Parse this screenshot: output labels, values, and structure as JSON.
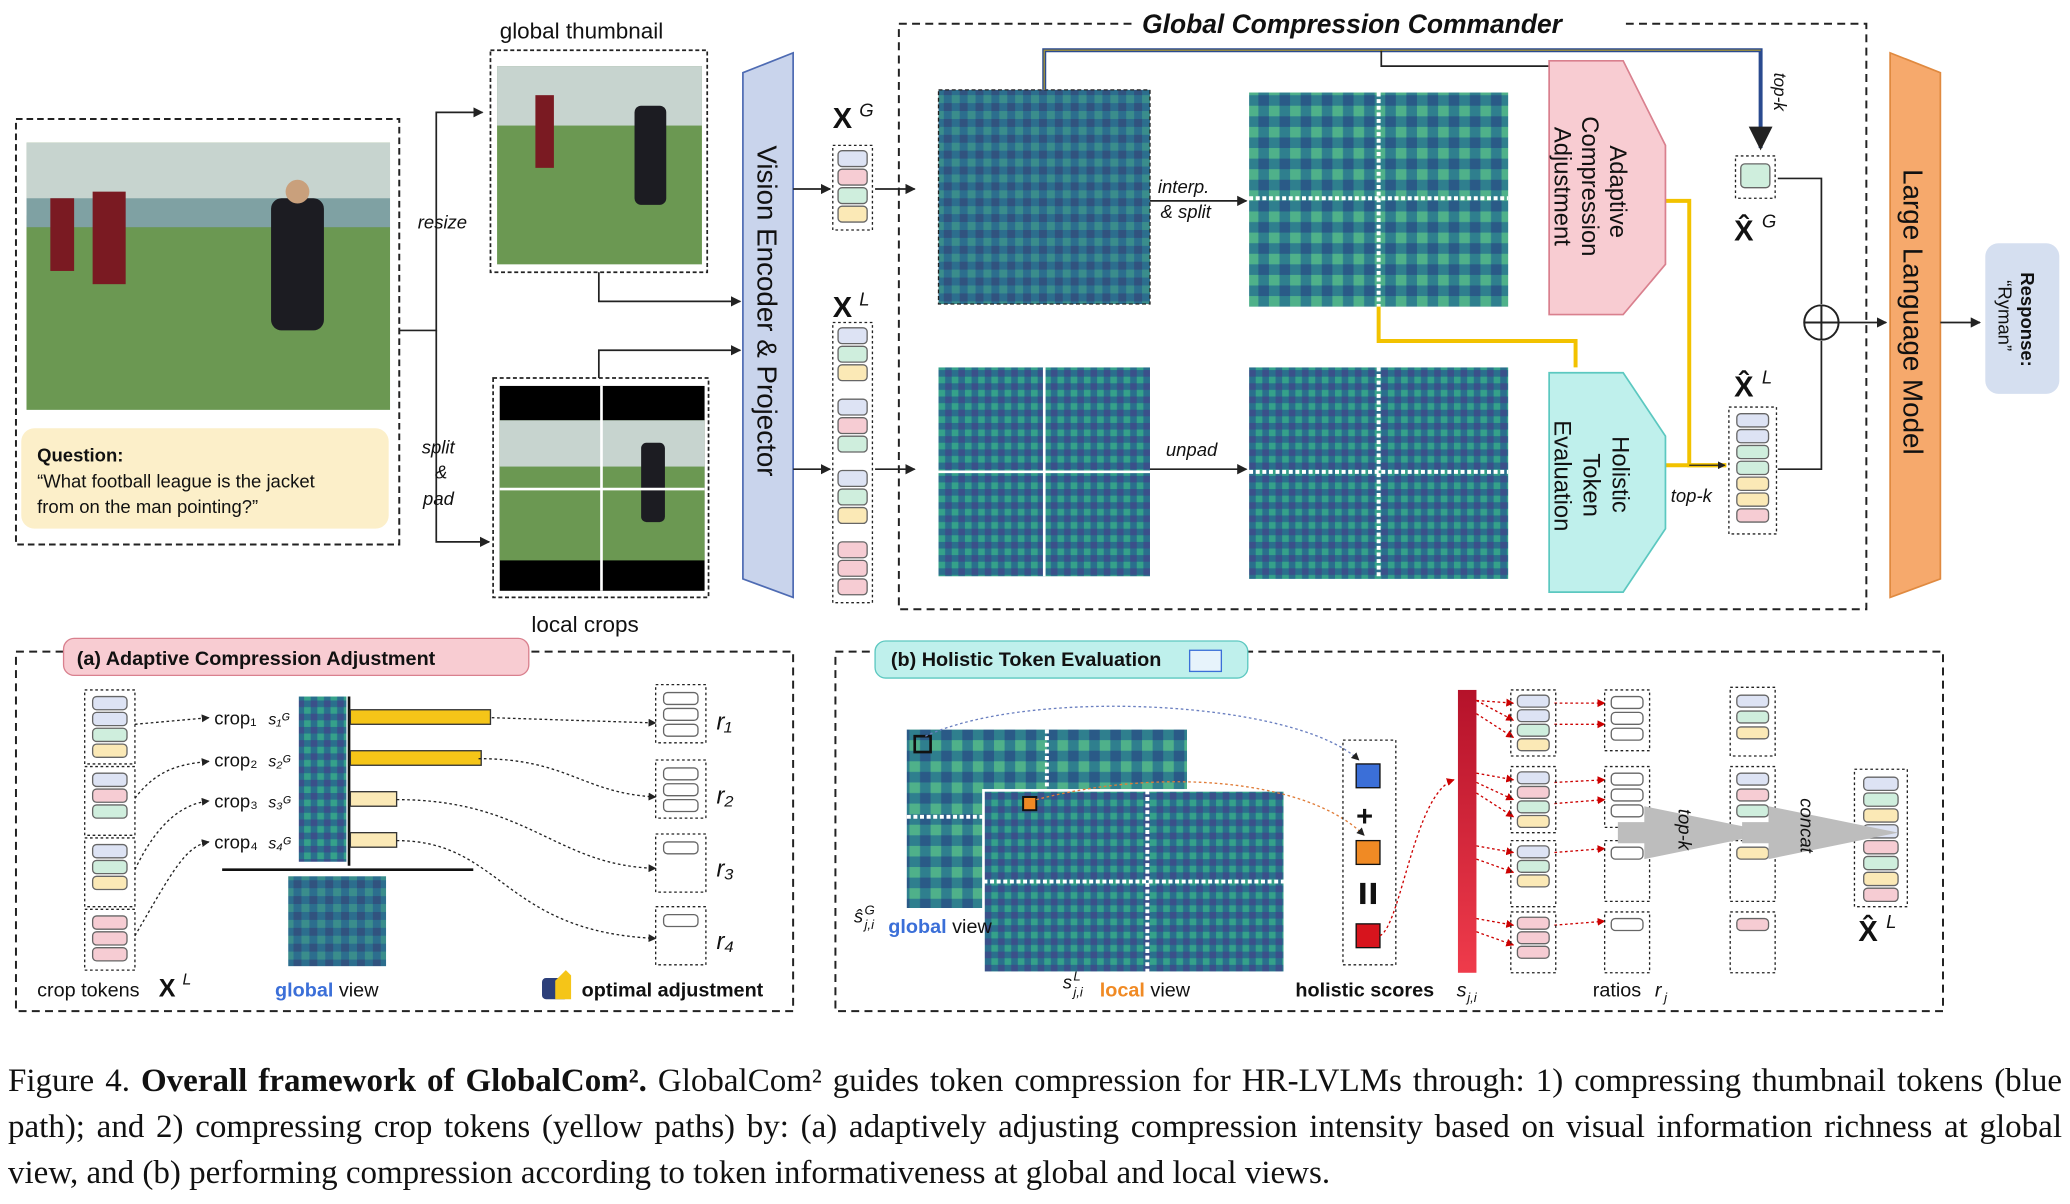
{
  "figure": {
    "global_thumbnail_label": "global thumbnail",
    "local_crops_label": "local crops",
    "resize_label": "resize",
    "split_label": "split",
    "amp_label": "&",
    "pad_label": "pad",
    "question_title": "Question:",
    "question_line1": "“What football league is the jacket",
    "question_line2": "from on the man pointing?”",
    "vision_encoder_label": "Vision Encoder & Projector",
    "xg_label": "X",
    "xg_sup": "G",
    "xl_label": "X",
    "xl_sup": "L",
    "gcc_title": "Global Compression Commander",
    "interp_label": "interp.",
    "split_label2": "& split",
    "unpad_label": "unpad",
    "aca_box_line1": "Adaptive",
    "aca_box_line2": "Compression",
    "aca_box_line3": "Adjustment",
    "hte_box_line1": "Holistic",
    "hte_box_line2": "Token",
    "hte_box_line3": "Evaluation",
    "topk_label": "top-k",
    "topk_label2": "top-k",
    "xg_hat_label": "X̂",
    "xl_hat_label": "X̂",
    "llm_label": "Large Language Model",
    "response_title": "Response:",
    "response_value": "“Ryman”"
  },
  "panel_a": {
    "title": "(a) Adaptive Compression Adjustment",
    "crops": [
      "crop₁",
      "crop₂",
      "crop₃",
      "crop₄"
    ],
    "crop_scores": [
      "s₁ᴳ",
      "s₂ᴳ",
      "s₃ᴳ",
      "s₄ᴳ"
    ],
    "bar_values": [
      1.0,
      0.93,
      0.33,
      0.33
    ],
    "ratios": [
      "r₁",
      "r₂",
      "r₃",
      "r₄"
    ],
    "crop_tokens_label": "crop tokens",
    "crop_tokens_math": "X",
    "crop_tokens_sup": "L",
    "global_word": "global",
    "view_word": " view",
    "optimal_label": "optimal adjustment"
  },
  "panel_b": {
    "title": "(b) Holistic Token Evaluation",
    "global_score": "ŝ",
    "global_score_sub": "j,i",
    "global_score_sup": "G",
    "global_word": "global",
    "view_word": " view",
    "local_score": "s",
    "local_score_sub": "j,i",
    "local_score_sup": "L",
    "local_word": "local",
    "holistic_label": "holistic scores",
    "holistic_math": "s",
    "holistic_sub": "j,i",
    "ratios_label": "ratios",
    "ratios_math": "r",
    "ratios_sub": "j",
    "topk_label": "top-k",
    "concat_label": "concat",
    "xl_hat": "X̂",
    "xl_hat_sup": "L"
  },
  "caption": {
    "prefix": "Figure 4. ",
    "bold": "Overall framework of GlobalCom².",
    "rest": " GlobalCom² guides token compression for HR-LVLMs through: 1) compressing thumbnail tokens (blue path); and 2) compressing crop tokens (yellow paths) by: (a) adaptively adjusting compression intensity based on visual information richness at global view, and (b) performing compression according to token informativeness at global and local views."
  },
  "colors": {
    "encoder_fill": "#c9d4ec",
    "llm_fill": "#f6a96c",
    "aca_fill": "#f8ccd2",
    "hte_fill": "#bff0ec",
    "blue_path": "#2a4a8f",
    "yellow_path": "#f2c200",
    "bar_fill": "#f5c518",
    "question_bg": "#fcefc9",
    "response_bg": "#d5dff0",
    "token_colors": [
      "#dde3f4",
      "#f6ccd3",
      "#cfeedd",
      "#fbe9b6"
    ]
  }
}
